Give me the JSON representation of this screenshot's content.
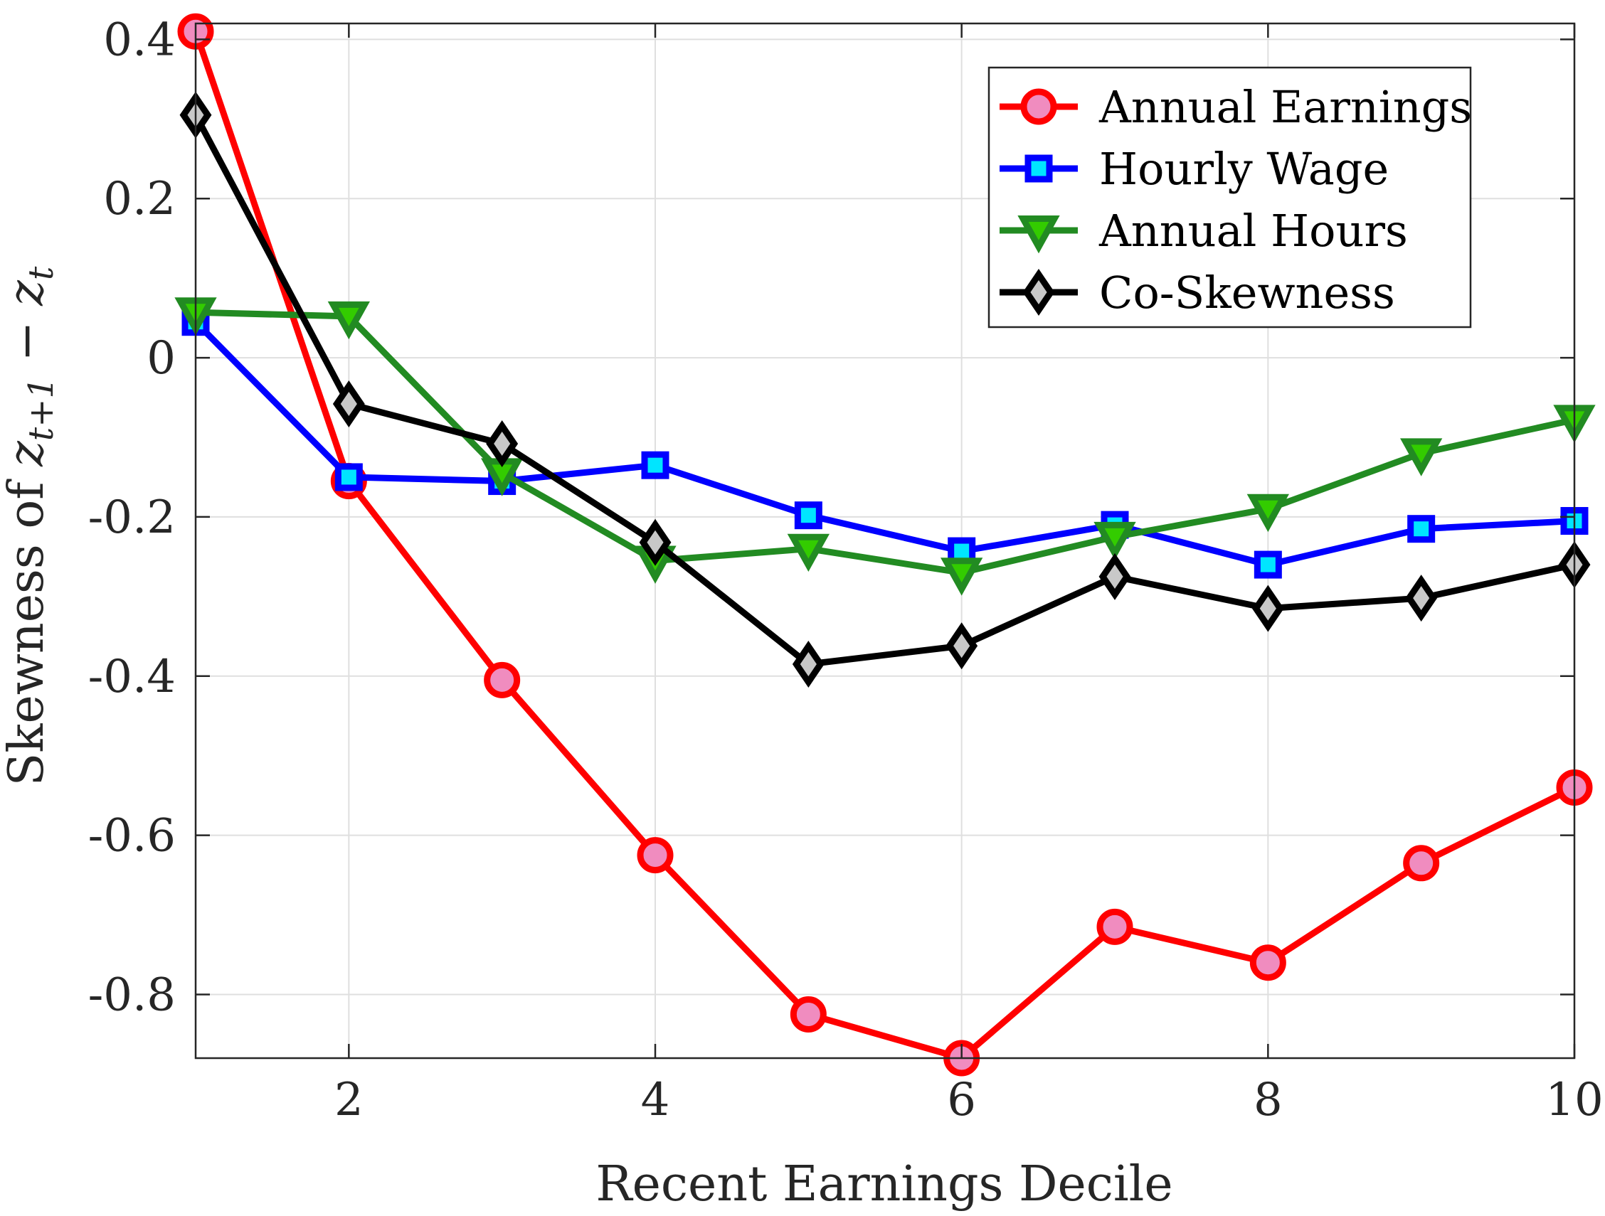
{
  "chart_data": {
    "type": "line",
    "title": "",
    "xlabel": "Recent Earnings Decile",
    "ylabel": {
      "prefix": "Skewness of ",
      "var": "z",
      "sub1": "t+1",
      "op": " − ",
      "sub2": "t"
    },
    "xlim": [
      1,
      10
    ],
    "ylim": [
      -0.88,
      0.42
    ],
    "xticks": [
      2,
      4,
      6,
      8,
      10
    ],
    "xtick_labels": [
      "2",
      "4",
      "6",
      "8",
      "10"
    ],
    "yticks": [
      0.4,
      0.2,
      0,
      -0.2,
      -0.4,
      -0.6,
      -0.8
    ],
    "ytick_labels": [
      "0.4",
      "0.2",
      "0",
      "-0.2",
      "-0.4",
      "-0.6",
      "-0.8"
    ],
    "grid": true,
    "legend_position": "top-right",
    "x": [
      1,
      2,
      3,
      4,
      5,
      6,
      7,
      8,
      9,
      10
    ],
    "series": [
      {
        "name": "Annual Earnings",
        "color": "#ff0000",
        "marker": "circle",
        "marker_fill": "#f08cbf",
        "values": [
          0.41,
          -0.155,
          -0.405,
          -0.625,
          -0.825,
          -0.88,
          -0.715,
          -0.76,
          -0.635,
          -0.54
        ]
      },
      {
        "name": "Hourly Wage",
        "color": "#0000ff",
        "marker": "square",
        "marker_fill": "#00e5ff",
        "values": [
          0.045,
          -0.15,
          -0.155,
          -0.135,
          -0.198,
          -0.243,
          -0.21,
          -0.26,
          -0.215,
          -0.205
        ]
      },
      {
        "name": "Annual Hours",
        "color": "#228b22",
        "marker": "triangle-down",
        "marker_fill": "#33cc00",
        "values": [
          0.057,
          0.052,
          -0.145,
          -0.255,
          -0.24,
          -0.27,
          -0.225,
          -0.19,
          -0.12,
          -0.078
        ]
      },
      {
        "name": "Co-Skewness",
        "color": "#000000",
        "marker": "diamond",
        "marker_fill": "#c8c8c8",
        "values": [
          0.305,
          -0.058,
          -0.108,
          -0.232,
          -0.385,
          -0.362,
          -0.275,
          -0.315,
          -0.302,
          -0.26
        ]
      }
    ]
  }
}
